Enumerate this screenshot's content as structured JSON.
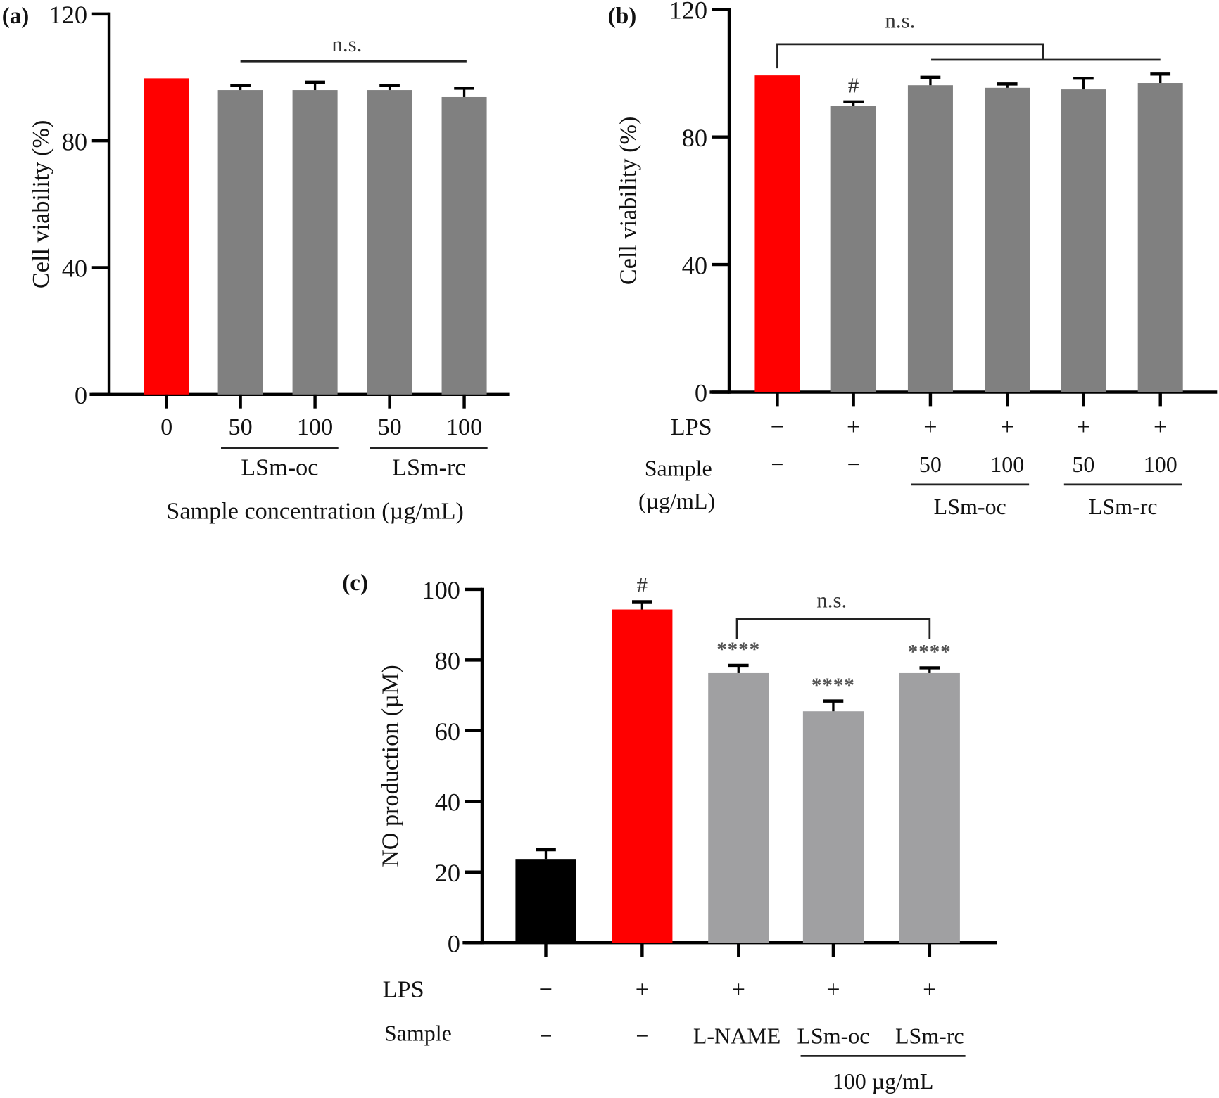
{
  "chart_data": [
    {
      "panel": "(a)",
      "type": "bar",
      "title": "",
      "ylabel": "Cell viability (%)",
      "xlabel": "Sample concentration (µg/mL)",
      "ylim": [
        0,
        120
      ],
      "yticks": [
        0,
        40,
        80,
        120
      ],
      "categories": [
        "0",
        "50",
        "100",
        "50",
        "100"
      ],
      "groups": [
        {
          "label": "LSm-oc",
          "from": 1,
          "to": 2
        },
        {
          "label": "LSm-rc",
          "from": 3,
          "to": 4
        }
      ],
      "values": [
        99.7,
        96.0,
        96.0,
        96.0,
        93.8
      ],
      "errors": [
        0,
        1.5,
        2.5,
        1.5,
        2.8
      ],
      "colors": [
        "#ff0000",
        "#808080",
        "#808080",
        "#808080",
        "#808080"
      ],
      "annotations": [
        {
          "text": "n.s.",
          "type": "line",
          "from": 1,
          "to": 4
        }
      ],
      "grid": false,
      "legend": "none"
    },
    {
      "panel": "(b)",
      "type": "bar",
      "title": "",
      "ylabel": "Cell viability (%)",
      "xlabel": "",
      "ylim": [
        0,
        120
      ],
      "yticks": [
        0,
        40,
        80,
        120
      ],
      "row_labels": {
        "lps": "LPS",
        "sample": "Sample",
        "sample_unit": "(µg/mL)"
      },
      "lps": [
        "−",
        "+",
        "+",
        "+",
        "+",
        "+"
      ],
      "sample": [
        "−",
        "−",
        "50",
        "100",
        "50",
        "100"
      ],
      "groups": [
        {
          "label": "LSm-oc",
          "from": 2,
          "to": 3
        },
        {
          "label": "LSm-rc",
          "from": 4,
          "to": 5
        }
      ],
      "values": [
        99.3,
        89.8,
        96.2,
        95.4,
        94.9,
        96.9
      ],
      "errors": [
        0,
        1.2,
        2.5,
        1.2,
        3.5,
        2.8
      ],
      "colors": [
        "#ff0000",
        "#808080",
        "#808080",
        "#808080",
        "#808080",
        "#808080"
      ],
      "marks": [
        "",
        "#",
        "",
        "",
        "",
        ""
      ],
      "annotations": [
        {
          "text": "n.s.",
          "type": "bracket",
          "from": 0,
          "to_group": [
            2,
            5
          ]
        }
      ],
      "grid": false,
      "legend": "none"
    },
    {
      "panel": "(c)",
      "type": "bar",
      "title": "",
      "ylabel": "NO production (µM)",
      "xlabel": "",
      "ylim": [
        0,
        100
      ],
      "yticks": [
        0,
        20,
        40,
        60,
        80,
        100
      ],
      "row_labels": {
        "lps": "LPS",
        "sample": "Sample"
      },
      "lps": [
        "−",
        "+",
        "+",
        "+",
        "+"
      ],
      "sample": [
        "−",
        "−",
        "L-NAME",
        "LSm-oc",
        "LSm-rc"
      ],
      "groups": [
        {
          "label": "100 µg/mL",
          "from": 3,
          "to": 4
        }
      ],
      "values": [
        23.7,
        94.3,
        76.3,
        65.5,
        76.3
      ],
      "errors": [
        2.6,
        2.2,
        2.2,
        2.9,
        1.5
      ],
      "colors": [
        "#000000",
        "#ff0000",
        "#a0a0a2",
        "#a0a0a2",
        "#a0a0a2"
      ],
      "marks": [
        "",
        "#",
        "****",
        "****",
        "****"
      ],
      "annotations": [
        {
          "text": "n.s.",
          "type": "bracket",
          "from": 2,
          "to": 4
        }
      ],
      "grid": false,
      "legend": "none"
    }
  ]
}
